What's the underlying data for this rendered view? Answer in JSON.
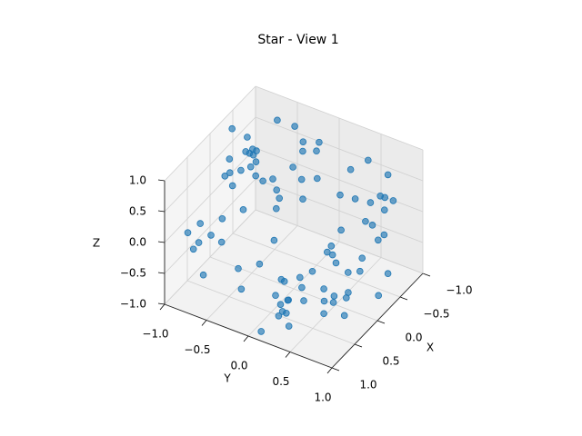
{
  "chart_data": {
    "type": "scatter3d",
    "title": "Star - View 1",
    "xlabel": "X",
    "ylabel": "Y",
    "zlabel": "Z",
    "color": "#1f77b4",
    "grid": true,
    "xlim": [
      -1,
      1
    ],
    "ylim": [
      -1,
      1
    ],
    "zlim": [
      -1,
      1
    ],
    "xticks": [
      {
        "value": -1,
        "label": "−1.0"
      },
      {
        "value": -0.5,
        "label": "−0.5"
      },
      {
        "value": 0,
        "label": "0.0"
      },
      0.5,
      {
        "value": 1,
        "label": "1.0"
      }
    ],
    "yticks": [
      {
        "value": -1,
        "label": "−1.0"
      },
      {
        "value": -0.5,
        "label": "−0.5"
      },
      {
        "value": 0,
        "label": "0.0"
      },
      0.5,
      {
        "value": 1,
        "label": "1.0"
      }
    ],
    "zticks": [
      {
        "value": -1,
        "label": "−1.0"
      },
      {
        "value": -0.5,
        "label": "−0.5"
      },
      {
        "value": 0,
        "label": "0.0"
      },
      0.5,
      {
        "value": 1,
        "label": "1.0"
      }
    ],
    "x": [
      0.8,
      -0.7,
      0.3,
      -0.2,
      0.6,
      -0.9,
      0.1,
      0.5,
      -0.4,
      0.9,
      -0.6,
      0.2,
      -0.8,
      0.7,
      -0.1,
      0.4,
      -0.5,
      0.0,
      0.85,
      -0.3,
      0.65,
      -0.75,
      0.15,
      -0.55,
      0.45,
      -0.85,
      0.35,
      -0.15,
      0.75,
      -0.45,
      0.55,
      -0.65,
      0.05,
      0.95,
      -0.95,
      0.25,
      -0.35,
      0.6,
      -0.2,
      0.8,
      -0.6,
      0.3,
      -0.9,
      0.1,
      0.7,
      -0.4,
      0.5,
      -0.7,
      0.2,
      -0.1,
      0.9,
      -0.5,
      0.4,
      -0.8,
      0.0,
      0.65,
      -0.25,
      0.45,
      -0.65,
      0.85,
      -0.05,
      0.35,
      -0.85,
      0.55,
      -0.35,
      0.15,
      0.75,
      -0.55,
      0.25,
      -0.75,
      0.5,
      -0.3,
      0.9,
      -0.9,
      0.1,
      0.6,
      -0.15,
      0.4,
      -0.45,
      0.7,
      -0.8,
      0.2,
      -0.6,
      0.8,
      0.0,
      -0.2,
      0.3,
      -0.7,
      0.55,
      -0.4
    ],
    "y": [
      0.2,
      0.7,
      -0.6,
      0.9,
      -0.3,
      0.4,
      -0.8,
      0.1,
      0.6,
      -0.5,
      0.8,
      -0.1,
      0.3,
      -0.7,
      0.5,
      -0.9,
      0.0,
      0.65,
      -0.4,
      0.85,
      -0.25,
      0.45,
      -0.65,
      0.15,
      0.75,
      -0.45,
      0.55,
      -0.85,
      0.35,
      -0.15,
      0.95,
      -0.55,
      0.25,
      -0.75,
      0.05,
      0.6,
      -0.2,
      0.8,
      -0.6,
      0.3,
      -0.9,
      0.1,
      0.7,
      -0.4,
      0.5,
      -0.7,
      0.2,
      -0.1,
      0.9,
      -0.5,
      0.4,
      -0.8,
      0.0,
      0.65,
      -0.25,
      0.45,
      -0.65,
      0.85,
      -0.05,
      0.35,
      -0.85,
      0.55,
      -0.35,
      0.15,
      0.75,
      -0.55,
      0.25,
      -0.75,
      0.5,
      -0.3,
      0.9,
      -0.9,
      0.1,
      0.6,
      -0.15,
      0.4,
      -0.45,
      0.7,
      -0.8,
      0.2,
      0.6,
      -0.3,
      0.8,
      -0.7,
      0.4,
      0.0,
      -0.5,
      0.3,
      -0.9,
      0.7
    ],
    "z": [
      0.5,
      -0.3,
      0.8,
      0.1,
      -0.7,
      0.6,
      -0.2,
      0.9,
      -0.5,
      0.3,
      -0.8,
      0.4,
      0.0,
      -0.6,
      0.7,
      -0.1,
      0.85,
      -0.4,
      0.2,
      -0.9,
      0.65,
      -0.25,
      0.45,
      -0.65,
      0.15,
      0.75,
      -0.45,
      0.55,
      -0.85,
      0.35,
      -0.15,
      0.95,
      -0.55,
      0.25,
      -0.75,
      0.05,
      0.6,
      -0.35,
      0.8,
      -0.6,
      0.3,
      -0.9,
      0.1,
      0.7,
      -0.4,
      0.5,
      -0.7,
      0.2,
      -0.1,
      0.9,
      -0.5,
      0.4,
      -0.8,
      0.0,
      0.65,
      -0.25,
      0.45,
      -0.65,
      0.85,
      -0.05,
      0.35,
      -0.85,
      0.55,
      -0.35,
      0.15,
      0.75,
      -0.55,
      0.25,
      -0.75,
      0.5,
      -0.3,
      0.9,
      -0.95,
      0.1,
      0.6,
      -0.15,
      0.4,
      -0.45,
      0.7,
      -0.8,
      0.2,
      -0.6,
      0.8,
      0.0,
      -0.2,
      0.3,
      -0.7,
      0.55,
      -0.4,
      0.45
    ]
  }
}
